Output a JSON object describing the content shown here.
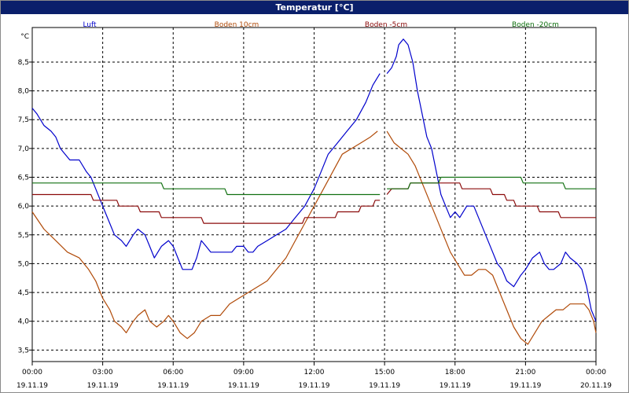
{
  "window": {
    "title": "Temperatur [°C]"
  },
  "chart_data": {
    "type": "line",
    "title": "Temperatur [°C]",
    "ylabel": "°C",
    "ylim": [
      3.3,
      9.1
    ],
    "y_ticks": [
      "3,5",
      "4,0",
      "4,5",
      "5,0",
      "5,5",
      "6,0",
      "6,5",
      "7,0",
      "7,5",
      "8,0",
      "8,5"
    ],
    "y_tick_values": [
      3.5,
      4.0,
      4.5,
      5.0,
      5.5,
      6.0,
      6.5,
      7.0,
      7.5,
      8.0,
      8.5
    ],
    "xlim": [
      0,
      24
    ],
    "x_ticks": [
      {
        "time": "00:00",
        "date": "19.11.19"
      },
      {
        "time": "03:00",
        "date": "19.11.19"
      },
      {
        "time": "06:00",
        "date": "19.11.19"
      },
      {
        "time": "09:00",
        "date": "19.11.19"
      },
      {
        "time": "12:00",
        "date": "19.11.19"
      },
      {
        "time": "15:00",
        "date": "19.11.19"
      },
      {
        "time": "18:00",
        "date": "19.11.19"
      },
      {
        "time": "21:00",
        "date": "19.11.19"
      },
      {
        "time": "00:00",
        "date": "20.11.19"
      }
    ],
    "grid": true,
    "series": [
      {
        "name": "Luft",
        "color": "#0000cc",
        "segments": [
          [
            [
              0,
              7.7
            ],
            [
              0.2,
              7.6
            ],
            [
              0.5,
              7.4
            ],
            [
              0.8,
              7.3
            ],
            [
              1.0,
              7.2
            ],
            [
              1.2,
              7.0
            ],
            [
              1.4,
              6.9
            ],
            [
              1.6,
              6.8
            ],
            [
              2.0,
              6.8
            ],
            [
              2.3,
              6.6
            ],
            [
              2.5,
              6.5
            ],
            [
              2.7,
              6.3
            ],
            [
              2.9,
              6.1
            ],
            [
              3.1,
              5.9
            ],
            [
              3.3,
              5.7
            ],
            [
              3.5,
              5.5
            ],
            [
              3.8,
              5.4
            ],
            [
              4.0,
              5.3
            ],
            [
              4.3,
              5.5
            ],
            [
              4.5,
              5.6
            ],
            [
              4.8,
              5.5
            ],
            [
              5.0,
              5.3
            ],
            [
              5.2,
              5.1
            ],
            [
              5.5,
              5.3
            ],
            [
              5.8,
              5.4
            ],
            [
              6.0,
              5.3
            ],
            [
              6.2,
              5.1
            ],
            [
              6.4,
              4.9
            ],
            [
              6.8,
              4.9
            ],
            [
              7.0,
              5.1
            ],
            [
              7.2,
              5.4
            ],
            [
              7.4,
              5.3
            ],
            [
              7.6,
              5.2
            ],
            [
              8.5,
              5.2
            ],
            [
              8.7,
              5.3
            ],
            [
              9.0,
              5.3
            ],
            [
              9.2,
              5.2
            ],
            [
              9.4,
              5.2
            ],
            [
              9.6,
              5.3
            ],
            [
              10.0,
              5.4
            ],
            [
              10.4,
              5.5
            ],
            [
              10.8,
              5.6
            ],
            [
              11.2,
              5.8
            ],
            [
              11.6,
              6.0
            ],
            [
              12.0,
              6.3
            ],
            [
              12.3,
              6.6
            ],
            [
              12.6,
              6.9
            ],
            [
              13.0,
              7.1
            ],
            [
              13.4,
              7.3
            ],
            [
              13.8,
              7.5
            ],
            [
              14.2,
              7.8
            ],
            [
              14.5,
              8.1
            ],
            [
              14.8,
              8.3
            ]
          ],
          [
            [
              15.1,
              8.3
            ],
            [
              15.3,
              8.4
            ],
            [
              15.5,
              8.6
            ],
            [
              15.6,
              8.8
            ],
            [
              15.8,
              8.9
            ],
            [
              16.0,
              8.8
            ],
            [
              16.2,
              8.5
            ],
            [
              16.4,
              8.0
            ],
            [
              16.6,
              7.6
            ],
            [
              16.8,
              7.2
            ],
            [
              17.0,
              7.0
            ],
            [
              17.2,
              6.6
            ],
            [
              17.4,
              6.2
            ],
            [
              17.6,
              6.0
            ],
            [
              17.8,
              5.8
            ],
            [
              18.0,
              5.9
            ],
            [
              18.2,
              5.8
            ],
            [
              18.5,
              6.0
            ],
            [
              18.8,
              6.0
            ],
            [
              19.0,
              5.8
            ],
            [
              19.3,
              5.5
            ],
            [
              19.6,
              5.2
            ],
            [
              19.8,
              5.0
            ],
            [
              20.0,
              4.9
            ],
            [
              20.2,
              4.7
            ],
            [
              20.5,
              4.6
            ],
            [
              20.8,
              4.8
            ],
            [
              21.0,
              4.9
            ],
            [
              21.3,
              5.1
            ],
            [
              21.6,
              5.2
            ],
            [
              21.8,
              5.0
            ],
            [
              22.0,
              4.9
            ],
            [
              22.2,
              4.9
            ],
            [
              22.5,
              5.0
            ],
            [
              22.7,
              5.2
            ],
            [
              22.9,
              5.1
            ],
            [
              23.2,
              5.0
            ],
            [
              23.4,
              4.9
            ],
            [
              23.6,
              4.6
            ],
            [
              23.8,
              4.2
            ],
            [
              24.0,
              4.0
            ]
          ]
        ]
      },
      {
        "name": "Boden 10cm",
        "color": "#b04a08",
        "segments": [
          [
            [
              0,
              5.9
            ],
            [
              0.5,
              5.6
            ],
            [
              1.0,
              5.4
            ],
            [
              1.5,
              5.2
            ],
            [
              2.0,
              5.1
            ],
            [
              2.4,
              4.9
            ],
            [
              2.7,
              4.7
            ],
            [
              3.0,
              4.4
            ],
            [
              3.3,
              4.2
            ],
            [
              3.5,
              4.0
            ],
            [
              3.8,
              3.9
            ],
            [
              4.0,
              3.8
            ],
            [
              4.3,
              4.0
            ],
            [
              4.5,
              4.1
            ],
            [
              4.8,
              4.2
            ],
            [
              5.0,
              4.0
            ],
            [
              5.3,
              3.9
            ],
            [
              5.6,
              4.0
            ],
            [
              5.8,
              4.1
            ],
            [
              6.0,
              4.0
            ],
            [
              6.3,
              3.8
            ],
            [
              6.6,
              3.7
            ],
            [
              6.9,
              3.8
            ],
            [
              7.2,
              4.0
            ],
            [
              7.6,
              4.1
            ],
            [
              8.0,
              4.1
            ],
            [
              8.4,
              4.3
            ],
            [
              8.8,
              4.4
            ],
            [
              9.2,
              4.5
            ],
            [
              9.6,
              4.6
            ],
            [
              10.0,
              4.7
            ],
            [
              10.4,
              4.9
            ],
            [
              10.8,
              5.1
            ],
            [
              11.2,
              5.4
            ],
            [
              11.6,
              5.7
            ],
            [
              12.0,
              6.0
            ],
            [
              12.4,
              6.3
            ],
            [
              12.8,
              6.6
            ],
            [
              13.2,
              6.9
            ],
            [
              13.6,
              7.0
            ],
            [
              14.0,
              7.1
            ],
            [
              14.4,
              7.2
            ],
            [
              14.7,
              7.3
            ]
          ],
          [
            [
              15.1,
              7.3
            ],
            [
              15.4,
              7.1
            ],
            [
              15.7,
              7.0
            ],
            [
              16.0,
              6.9
            ],
            [
              16.3,
              6.7
            ],
            [
              16.6,
              6.4
            ],
            [
              16.9,
              6.1
            ],
            [
              17.2,
              5.8
            ],
            [
              17.5,
              5.5
            ],
            [
              17.8,
              5.2
            ],
            [
              18.1,
              5.0
            ],
            [
              18.4,
              4.8
            ],
            [
              18.7,
              4.8
            ],
            [
              19.0,
              4.9
            ],
            [
              19.3,
              4.9
            ],
            [
              19.6,
              4.8
            ],
            [
              19.9,
              4.5
            ],
            [
              20.2,
              4.2
            ],
            [
              20.5,
              3.9
            ],
            [
              20.8,
              3.7
            ],
            [
              21.1,
              3.6
            ],
            [
              21.4,
              3.8
            ],
            [
              21.7,
              4.0
            ],
            [
              22.0,
              4.1
            ],
            [
              22.3,
              4.2
            ],
            [
              22.6,
              4.2
            ],
            [
              22.9,
              4.3
            ],
            [
              23.2,
              4.3
            ],
            [
              23.5,
              4.3
            ],
            [
              23.7,
              4.2
            ],
            [
              23.9,
              4.0
            ],
            [
              24.0,
              3.8
            ]
          ]
        ]
      },
      {
        "name": "Boden -5cm",
        "color": "#8b0a0a",
        "segments": [
          [
            [
              0,
              6.2
            ],
            [
              2.5,
              6.2
            ],
            [
              2.6,
              6.1
            ],
            [
              3.6,
              6.1
            ],
            [
              3.7,
              6.0
            ],
            [
              4.5,
              6.0
            ],
            [
              4.6,
              5.9
            ],
            [
              5.4,
              5.9
            ],
            [
              5.5,
              5.8
            ],
            [
              7.2,
              5.8
            ],
            [
              7.3,
              5.7
            ],
            [
              11.5,
              5.7
            ],
            [
              11.6,
              5.8
            ],
            [
              12.9,
              5.8
            ],
            [
              13.0,
              5.9
            ],
            [
              13.9,
              5.9
            ],
            [
              14.0,
              6.0
            ],
            [
              14.5,
              6.0
            ],
            [
              14.6,
              6.1
            ],
            [
              14.8,
              6.1
            ]
          ],
          [
            [
              15.1,
              6.2
            ],
            [
              15.3,
              6.3
            ],
            [
              16.0,
              6.3
            ],
            [
              16.1,
              6.4
            ],
            [
              18.2,
              6.4
            ],
            [
              18.3,
              6.3
            ],
            [
              19.5,
              6.3
            ],
            [
              19.6,
              6.2
            ],
            [
              20.1,
              6.2
            ],
            [
              20.2,
              6.1
            ],
            [
              20.5,
              6.1
            ],
            [
              20.6,
              6.0
            ],
            [
              21.5,
              6.0
            ],
            [
              21.6,
              5.9
            ],
            [
              22.4,
              5.9
            ],
            [
              22.5,
              5.8
            ],
            [
              24.0,
              5.8
            ]
          ]
        ]
      },
      {
        "name": "Boden -20cm",
        "color": "#107010",
        "segments": [
          [
            [
              0,
              6.4
            ],
            [
              5.5,
              6.4
            ],
            [
              5.6,
              6.3
            ],
            [
              8.2,
              6.3
            ],
            [
              8.3,
              6.2
            ],
            [
              14.8,
              6.2
            ]
          ],
          [
            [
              15.1,
              6.3
            ],
            [
              16.0,
              6.3
            ],
            [
              16.1,
              6.4
            ],
            [
              17.3,
              6.4
            ],
            [
              17.4,
              6.5
            ],
            [
              20.8,
              6.5
            ],
            [
              20.9,
              6.4
            ],
            [
              22.6,
              6.4
            ],
            [
              22.7,
              6.3
            ],
            [
              24.0,
              6.3
            ]
          ]
        ]
      }
    ]
  }
}
